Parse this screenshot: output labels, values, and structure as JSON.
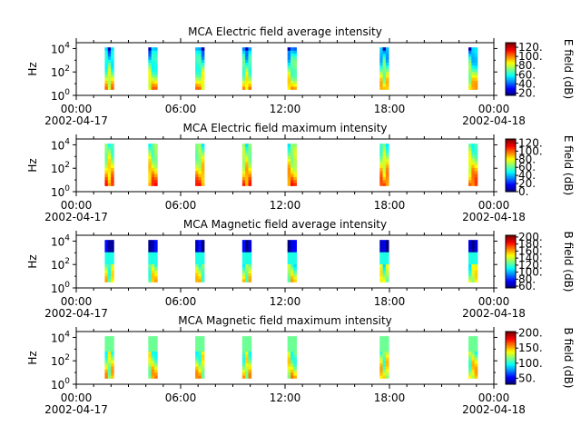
{
  "chart_data": [
    {
      "type": "heatmap",
      "title": "MCA  Electric field average intensity",
      "ylabel": "Hz",
      "y_scale": "log",
      "y_ticks": [
        {
          "base": "10",
          "exp": "0"
        },
        {
          "base": "10",
          "exp": "2"
        },
        {
          "base": "10",
          "exp": "4"
        }
      ],
      "x_ticks": [
        {
          "time": "00:00",
          "date": "2002-04-17"
        },
        {
          "time": "06:00",
          "date": ""
        },
        {
          "time": "12:00",
          "date": ""
        },
        {
          "time": "18:00",
          "date": ""
        },
        {
          "time": "00:00",
          "date": "2002-04-18"
        }
      ],
      "colorbar": {
        "label": "E field (dB)",
        "ticks": [
          "20.",
          "40.",
          "60.",
          "80.",
          "100.",
          "120."
        ],
        "range": [
          15,
          130
        ]
      },
      "passes_hours": [
        1.9,
        4.4,
        7.1,
        9.8,
        12.4,
        17.7,
        22.8
      ],
      "profile": "avgE"
    },
    {
      "type": "heatmap",
      "title": "MCA  Electric field maximum intensity",
      "ylabel": "Hz",
      "y_scale": "log",
      "y_ticks": [
        {
          "base": "10",
          "exp": "0"
        },
        {
          "base": "10",
          "exp": "2"
        },
        {
          "base": "10",
          "exp": "4"
        }
      ],
      "x_ticks": [
        {
          "time": "00:00",
          "date": "2002-04-17"
        },
        {
          "time": "06:00",
          "date": ""
        },
        {
          "time": "12:00",
          "date": ""
        },
        {
          "time": "18:00",
          "date": ""
        },
        {
          "time": "00:00",
          "date": "2002-04-18"
        }
      ],
      "colorbar": {
        "label": "E field (dB)",
        "ticks": [
          "0.",
          "20.",
          "40.",
          "60.",
          "80.",
          "100.",
          "120."
        ],
        "range": [
          0,
          130
        ]
      },
      "passes_hours": [
        1.9,
        4.4,
        7.1,
        9.8,
        12.4,
        17.7,
        22.8
      ],
      "profile": "maxE"
    },
    {
      "type": "heatmap",
      "title": "MCA  Magnetic field average intensity",
      "ylabel": "Hz",
      "y_scale": "log",
      "y_ticks": [
        {
          "base": "10",
          "exp": "0"
        },
        {
          "base": "10",
          "exp": "2"
        },
        {
          "base": "10",
          "exp": "4"
        }
      ],
      "x_ticks": [
        {
          "time": "00:00",
          "date": "2002-04-17"
        },
        {
          "time": "06:00",
          "date": ""
        },
        {
          "time": "12:00",
          "date": ""
        },
        {
          "time": "18:00",
          "date": ""
        },
        {
          "time": "00:00",
          "date": "2002-04-18"
        }
      ],
      "colorbar": {
        "label": "B field (dB)",
        "ticks": [
          "60.",
          "80.",
          "100.",
          "120.",
          "140.",
          "160.",
          "180.",
          "200."
        ],
        "range": [
          55,
          205
        ]
      },
      "passes_hours": [
        1.9,
        4.4,
        7.1,
        9.8,
        12.4,
        17.7,
        22.8
      ],
      "profile": "avgB"
    },
    {
      "type": "heatmap",
      "title": "MCA  Magnetic field maximum intensity",
      "ylabel": "Hz",
      "y_scale": "log",
      "y_ticks": [
        {
          "base": "10",
          "exp": "0"
        },
        {
          "base": "10",
          "exp": "2"
        },
        {
          "base": "10",
          "exp": "4"
        }
      ],
      "x_ticks": [
        {
          "time": "00:00",
          "date": "2002-04-17"
        },
        {
          "time": "06:00",
          "date": ""
        },
        {
          "time": "12:00",
          "date": ""
        },
        {
          "time": "18:00",
          "date": ""
        },
        {
          "time": "00:00",
          "date": "2002-04-18"
        }
      ],
      "colorbar": {
        "label": "B field (dB)",
        "ticks": [
          "50.",
          "100.",
          "150.",
          "200."
        ],
        "range": [
          30,
          205
        ]
      },
      "passes_hours": [
        1.9,
        4.4,
        7.1,
        9.8,
        12.4,
        17.7,
        22.8
      ],
      "profile": "maxB"
    }
  ]
}
